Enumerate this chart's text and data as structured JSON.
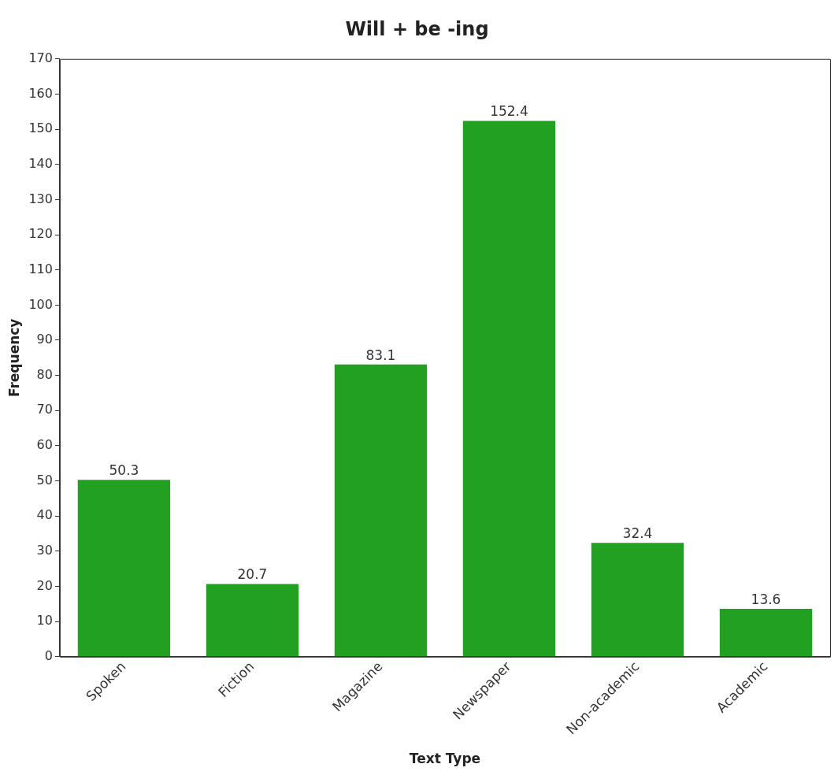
{
  "chart_data": {
    "type": "bar",
    "title": "Will + be -ing",
    "xlabel": "Text Type",
    "ylabel": "Frequency",
    "categories": [
      "Spoken",
      "Fiction",
      "Magazine",
      "Newspaper",
      "Non-academic",
      "Academic"
    ],
    "values": [
      50.3,
      20.7,
      83.1,
      152.4,
      32.4,
      13.6
    ],
    "color": "#22a022",
    "ylim": [
      0,
      170
    ],
    "yticks": [
      0,
      10,
      20,
      30,
      40,
      50,
      60,
      70,
      80,
      90,
      100,
      110,
      120,
      130,
      140,
      150,
      160,
      170
    ],
    "grid": false,
    "legend": false,
    "data_labels": true
  }
}
